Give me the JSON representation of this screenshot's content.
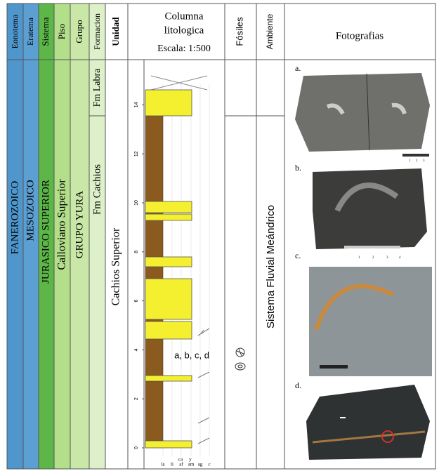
{
  "headers": {
    "eonotema": "Eonotema",
    "eratema": "Eratema",
    "sistema": "Sistema",
    "piso": "Piso",
    "grupo": "Grupo",
    "formacion": "Formacion",
    "unidad": "Unidad",
    "columna": [
      "Columna",
      "litologica"
    ],
    "escala": "Escala: 1:500",
    "fosiles": "Fósiles",
    "ambiente": "Ambiente",
    "fotografias": "Fotografias"
  },
  "body": {
    "eonotema": "FANEROZOICO",
    "eratema": "MESOZOICO",
    "sistema": "JURASICO SUPERIOR",
    "piso": "Calloviano Superior",
    "grupo": "GRUPO YURA",
    "formaciones": [
      "Fm Labra",
      "Fm Cachios"
    ],
    "unidad": "Cachios Superior",
    "ambiente": "Sistema Fluvial Meándrico"
  },
  "column": {
    "ticks": [
      0,
      2,
      4,
      6,
      8,
      10,
      12,
      14
    ],
    "annotation": "a, b, c, d",
    "grain_top": [
      "ca",
      "y"
    ],
    "grain": [
      "la",
      "li",
      "af",
      "am",
      "ag",
      "c"
    ]
  },
  "photos": [
    {
      "label": "a.",
      "scale": [
        "1",
        "2",
        "3"
      ]
    },
    {
      "label": "b.",
      "scale": [
        "1",
        "2",
        "3",
        "4"
      ]
    },
    {
      "label": "c."
    },
    {
      "label": "d."
    }
  ]
}
